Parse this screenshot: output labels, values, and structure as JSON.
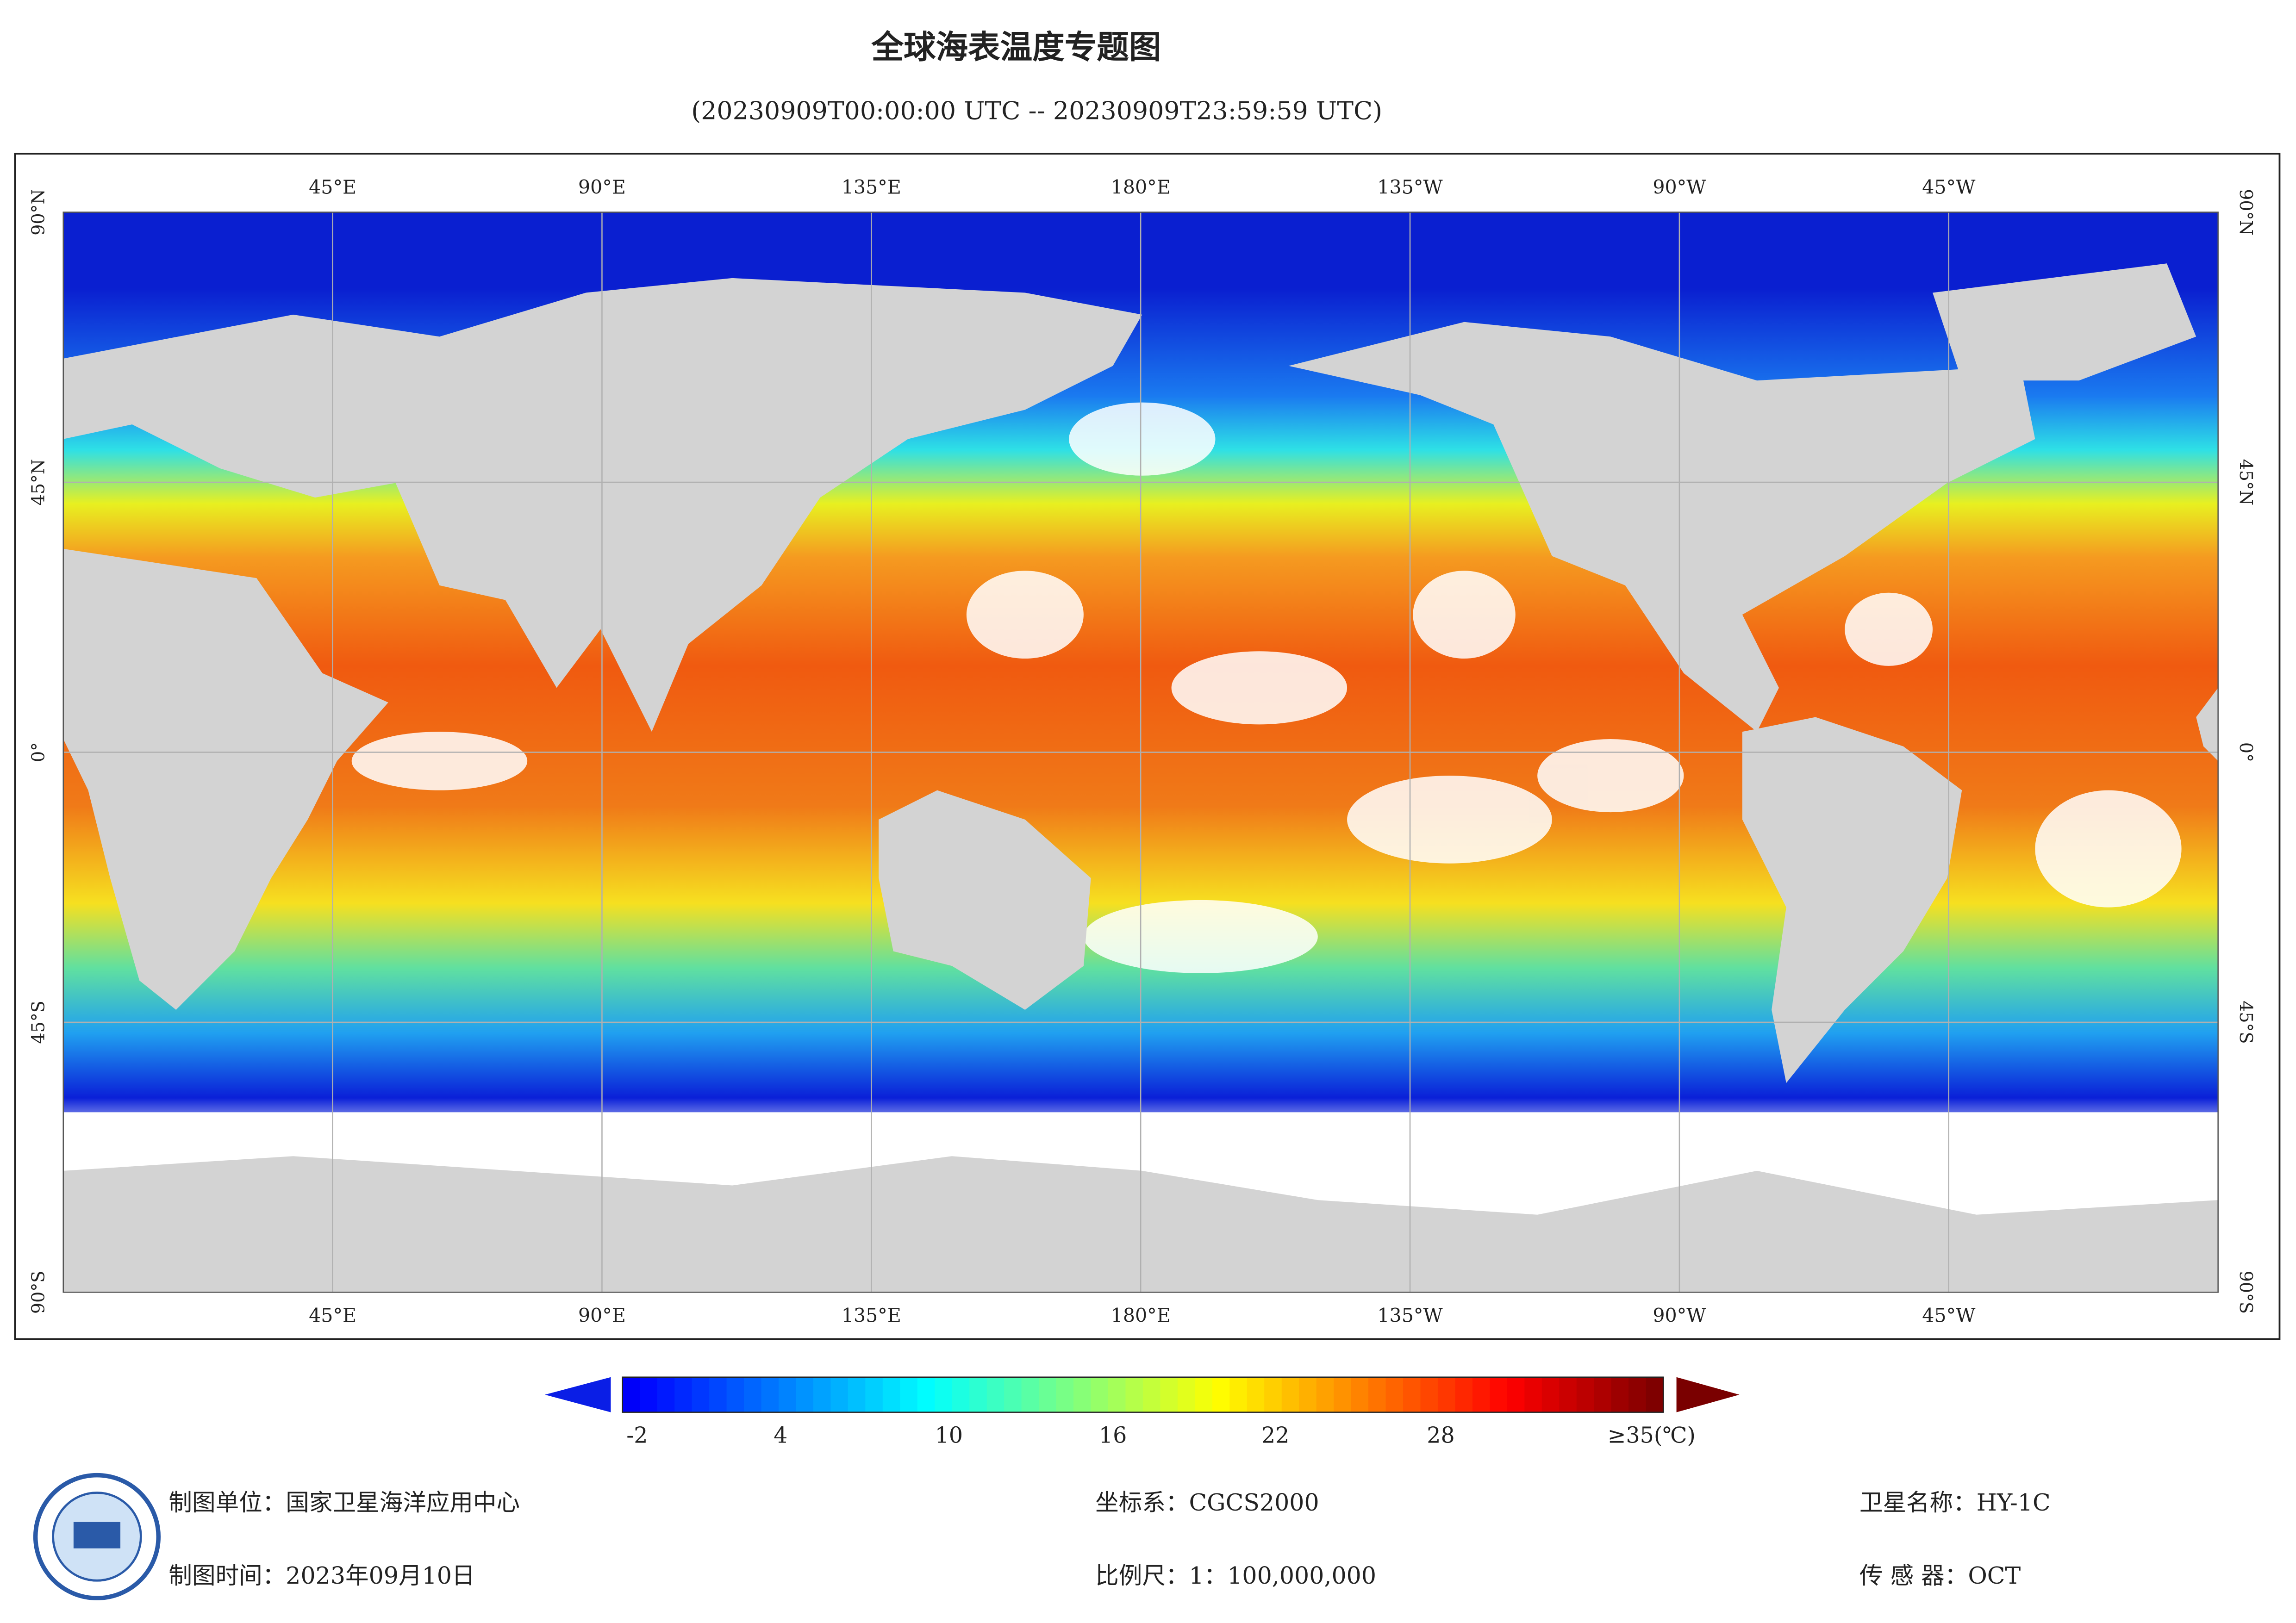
{
  "header": {
    "title": "全球海表温度专题图",
    "subtitle": "(20230909T00:00:00 UTC -- 20230909T23:59:59 UTC)"
  },
  "map": {
    "top_labels": [
      "45°E",
      "90°E",
      "135°E",
      "180°E",
      "135°W",
      "90°W",
      "45°W"
    ],
    "bottom_labels": [
      "45°E",
      "90°E",
      "135°E",
      "180°E",
      "135°W",
      "90°W",
      "45°W"
    ],
    "left_labels": [
      "90°N",
      "45°N",
      "0°",
      "45°S",
      "90°S"
    ],
    "right_labels": [
      "90°N",
      "45°N",
      "0°",
      "45°S",
      "90°S"
    ]
  },
  "colorbar": {
    "labels": [
      "-2",
      "4",
      "10",
      "16",
      "22",
      "28",
      "≥35(℃)"
    ]
  },
  "footer": {
    "org": "制图单位：国家卫星海洋应用中心",
    "date": "制图时间：2023年09月10日",
    "crs": "坐标系：CGCS2000",
    "scale": "比例尺：1：100,000,000",
    "satellite": "卫星名称：HY-1C",
    "sensor": "传 感 器：OCT"
  }
}
